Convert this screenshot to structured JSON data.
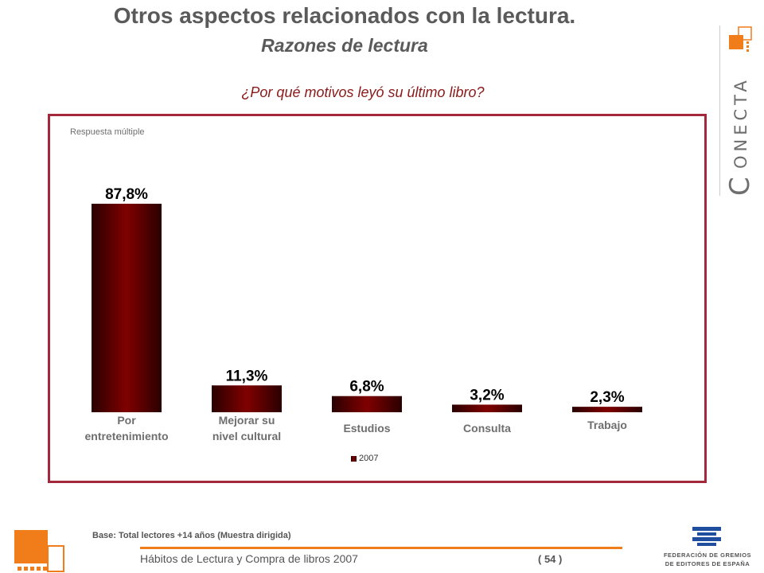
{
  "header": {
    "title": "Otros aspectos relacionados con la lectura.",
    "subtitle": "Razones de lectura",
    "question": "¿Por qué motivos leyó su último libro?"
  },
  "brand": {
    "vertical_text": "ONECTA",
    "first_letter": "C",
    "accent_color": "#f07c1a"
  },
  "note": "Respuesta múltiple",
  "chart_data": {
    "type": "bar",
    "categories": [
      "Por entretenimiento",
      "Mejorar su nivel cultural",
      "Estudios",
      "Consulta",
      "Trabajo"
    ],
    "category_lines": [
      [
        "Por",
        "entretenimiento"
      ],
      [
        "Mejorar su",
        "nivel cultural"
      ],
      [
        "Estudios"
      ],
      [
        "Consulta"
      ],
      [
        "Trabajo"
      ]
    ],
    "series": [
      {
        "name": "2007",
        "values": [
          87.8,
          11.3,
          6.8,
          3.2,
          2.3
        ]
      }
    ],
    "value_labels": [
      "87,8%",
      "11,3%",
      "6,8%",
      "3,2%",
      "2,3%"
    ],
    "ylim": [
      0,
      100
    ],
    "bar_color": "#800000",
    "legend_position": "bottom-center",
    "grid": false
  },
  "legend_label": "2007",
  "base_note": "Base:  Total lectores +14 años (Muestra dirigida)",
  "footer": {
    "text": "Hábitos de Lectura y Compra de libros 2007",
    "page": "( 54 )"
  },
  "federation": {
    "line1": "FEDERACIÓN DE GREMIOS",
    "line2": "DE EDITORES DE ESPAÑA"
  }
}
